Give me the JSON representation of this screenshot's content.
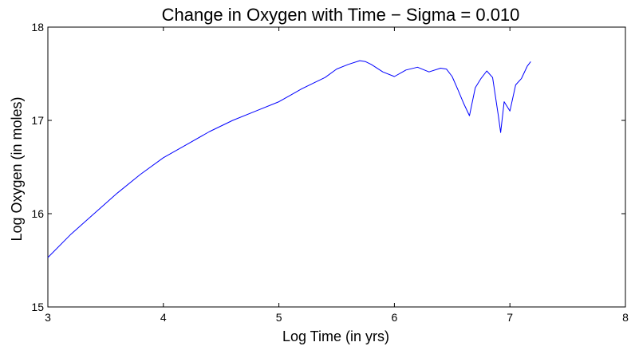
{
  "chart_data": {
    "type": "line",
    "title": "Change in Oxygen with Time − Sigma = 0.010",
    "xlabel": "Log Time (in yrs)",
    "ylabel": "Log Oxygen (in moles)",
    "xlim": [
      3,
      8
    ],
    "ylim": [
      15,
      18
    ],
    "x_ticks": [
      "3",
      "4",
      "5",
      "6",
      "7",
      "8"
    ],
    "y_ticks": [
      "15",
      "16",
      "17",
      "18"
    ],
    "grid": false,
    "legend": "none",
    "series": [
      {
        "color": "#0000ff",
        "x": [
          3.0,
          3.2,
          3.4,
          3.6,
          3.8,
          4.0,
          4.2,
          4.4,
          4.6,
          4.8,
          5.0,
          5.1,
          5.2,
          5.3,
          5.4,
          5.5,
          5.6,
          5.7,
          5.75,
          5.8,
          5.9,
          6.0,
          6.1,
          6.2,
          6.3,
          6.4,
          6.45,
          6.5,
          6.55,
          6.6,
          6.65,
          6.7,
          6.75,
          6.8,
          6.85,
          6.9,
          6.92,
          6.95,
          7.0,
          7.05,
          7.1,
          7.15,
          7.18
        ],
        "y": [
          15.53,
          15.78,
          16.0,
          16.22,
          16.42,
          16.6,
          16.74,
          16.88,
          17.0,
          17.1,
          17.2,
          17.27,
          17.34,
          17.4,
          17.46,
          17.55,
          17.6,
          17.64,
          17.63,
          17.6,
          17.52,
          17.47,
          17.54,
          17.57,
          17.52,
          17.56,
          17.55,
          17.47,
          17.33,
          17.18,
          17.05,
          17.35,
          17.45,
          17.53,
          17.46,
          17.05,
          16.87,
          17.2,
          17.1,
          17.38,
          17.45,
          17.58,
          17.63
        ]
      }
    ]
  }
}
